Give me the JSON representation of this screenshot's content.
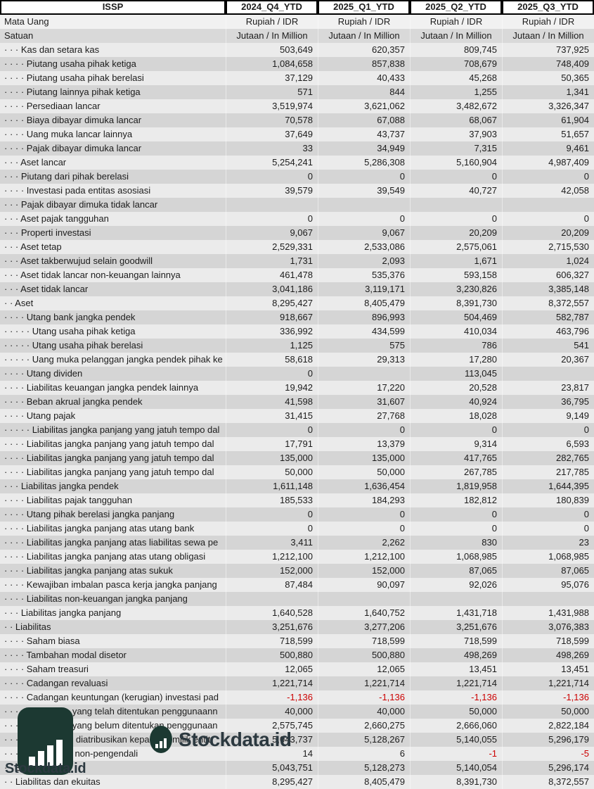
{
  "header": {
    "ticker": "ISSP",
    "periods": [
      "2024_Q4_YTD",
      "2025_Q1_YTD",
      "2025_Q2_YTD",
      "2025_Q3_YTD"
    ],
    "currency_label": "Mata Uang",
    "currency_values": [
      "Rupiah / IDR",
      "Rupiah / IDR",
      "Rupiah / IDR",
      "Rupiah / IDR"
    ],
    "unit_label": "Satuan",
    "unit_values": [
      "Jutaan / In Million",
      "Jutaan / In Million",
      "Jutaan / In Million",
      "Jutaan / In Million"
    ]
  },
  "colors": {
    "negative_value": "#cc0000",
    "row_light": "#ebebeb",
    "row_dark": "#d5d5d5",
    "logo_background": "#1c3932",
    "brand_text": "#2c3940"
  },
  "watermark": {
    "brand": "Stockdata.id"
  },
  "rows": [
    {
      "label": "· · · Kas dan setara kas",
      "values": [
        "503,649",
        "620,357",
        "809,745",
        "737,925"
      ]
    },
    {
      "label": "· · · · Piutang usaha pihak ketiga",
      "values": [
        "1,084,658",
        "857,838",
        "708,679",
        "748,409"
      ]
    },
    {
      "label": "· · · · Piutang usaha pihak berelasi",
      "values": [
        "37,129",
        "40,433",
        "45,268",
        "50,365"
      ]
    },
    {
      "label": "· · · · Piutang lainnya pihak ketiga",
      "values": [
        "571",
        "844",
        "1,255",
        "1,341"
      ]
    },
    {
      "label": "· · · · Persediaan lancar",
      "values": [
        "3,519,974",
        "3,621,062",
        "3,482,672",
        "3,326,347"
      ]
    },
    {
      "label": "· · · · Biaya dibayar dimuka lancar",
      "values": [
        "70,578",
        "67,088",
        "68,067",
        "61,904"
      ]
    },
    {
      "label": "· · · · Uang muka lancar lainnya",
      "values": [
        "37,649",
        "43,737",
        "37,903",
        "51,657"
      ]
    },
    {
      "label": "· · · · Pajak dibayar dimuka lancar",
      "values": [
        "33",
        "34,949",
        "7,315",
        "9,461"
      ]
    },
    {
      "label": "· · · Aset lancar",
      "values": [
        "5,254,241",
        "5,286,308",
        "5,160,904",
        "4,987,409"
      ]
    },
    {
      "label": "· · · Piutang dari pihak berelasi",
      "values": [
        "0",
        "0",
        "0",
        "0"
      ]
    },
    {
      "label": "· · · · Investasi pada entitas asosiasi",
      "values": [
        "39,579",
        "39,549",
        "40,727",
        "42,058"
      ]
    },
    {
      "label": "· · · Pajak dibayar dimuka tidak lancar",
      "values": [
        "",
        "",
        "",
        ""
      ]
    },
    {
      "label": "· · · Aset pajak tangguhan",
      "values": [
        "0",
        "0",
        "0",
        "0"
      ]
    },
    {
      "label": "· · · Properti investasi",
      "values": [
        "9,067",
        "9,067",
        "20,209",
        "20,209"
      ]
    },
    {
      "label": "· · · Aset tetap",
      "values": [
        "2,529,331",
        "2,533,086",
        "2,575,061",
        "2,715,530"
      ]
    },
    {
      "label": "· · · Aset takberwujud selain goodwill",
      "values": [
        "1,731",
        "2,093",
        "1,671",
        "1,024"
      ]
    },
    {
      "label": "· · · Aset tidak lancar non-keuangan lainnya",
      "values": [
        "461,478",
        "535,376",
        "593,158",
        "606,327"
      ]
    },
    {
      "label": "· · · Aset tidak lancar",
      "values": [
        "3,041,186",
        "3,119,171",
        "3,230,826",
        "3,385,148"
      ]
    },
    {
      "label": "· · Aset",
      "values": [
        "8,295,427",
        "8,405,479",
        "8,391,730",
        "8,372,557"
      ]
    },
    {
      "label": "· · · · Utang bank jangka pendek",
      "values": [
        "918,667",
        "896,993",
        "504,469",
        "582,787"
      ]
    },
    {
      "label": "· · · · · Utang usaha pihak ketiga",
      "values": [
        "336,992",
        "434,599",
        "410,034",
        "463,796"
      ]
    },
    {
      "label": "· · · · · Utang usaha pihak berelasi",
      "values": [
        "1,125",
        "575",
        "786",
        "541"
      ]
    },
    {
      "label": "· · · · · Uang muka pelanggan jangka pendek pihak ke",
      "values": [
        "58,618",
        "29,313",
        "17,280",
        "20,367"
      ]
    },
    {
      "label": "· · · · Utang dividen",
      "values": [
        "0",
        "",
        "113,045",
        ""
      ]
    },
    {
      "label": "· · · · Liabilitas keuangan jangka pendek lainnya",
      "values": [
        "19,942",
        "17,220",
        "20,528",
        "23,817"
      ]
    },
    {
      "label": "· · · · Beban akrual jangka pendek",
      "values": [
        "41,598",
        "31,607",
        "40,924",
        "36,795"
      ]
    },
    {
      "label": "· · · · Utang pajak",
      "values": [
        "31,415",
        "27,768",
        "18,028",
        "9,149"
      ]
    },
    {
      "label": "· · · · · Liabilitas jangka panjang yang jatuh tempo dal",
      "values": [
        "0",
        "0",
        "0",
        "0"
      ]
    },
    {
      "label": "· · · · Liabilitas jangka panjang yang jatuh tempo dal",
      "values": [
        "17,791",
        "13,379",
        "9,314",
        "6,593"
      ]
    },
    {
      "label": "· · · · Liabilitas jangka panjang yang jatuh tempo dal",
      "values": [
        "135,000",
        "135,000",
        "417,765",
        "282,765"
      ]
    },
    {
      "label": "· · · · Liabilitas jangka panjang yang jatuh tempo dal",
      "values": [
        "50,000",
        "50,000",
        "267,785",
        "217,785"
      ]
    },
    {
      "label": "· · · Liabilitas jangka pendek",
      "values": [
        "1,611,148",
        "1,636,454",
        "1,819,958",
        "1,644,395"
      ]
    },
    {
      "label": "· · · · Liabilitas pajak tangguhan",
      "values": [
        "185,533",
        "184,293",
        "182,812",
        "180,839"
      ]
    },
    {
      "label": "· · · · Utang pihak berelasi jangka panjang",
      "values": [
        "0",
        "0",
        "0",
        "0"
      ]
    },
    {
      "label": "· · · · Liabilitas jangka panjang atas utang bank",
      "values": [
        "0",
        "0",
        "0",
        "0"
      ]
    },
    {
      "label": "· · · · Liabilitas jangka panjang atas liabilitas sewa pe",
      "values": [
        "3,411",
        "2,262",
        "830",
        "23"
      ]
    },
    {
      "label": "· · · · Liabilitas jangka panjang atas utang obligasi",
      "values": [
        "1,212,100",
        "1,212,100",
        "1,068,985",
        "1,068,985"
      ]
    },
    {
      "label": "· · · · Liabilitas jangka panjang atas sukuk",
      "values": [
        "152,000",
        "152,000",
        "87,065",
        "87,065"
      ]
    },
    {
      "label": "· · · · Kewajiban imbalan pasca kerja jangka panjang",
      "values": [
        "87,484",
        "90,097",
        "92,026",
        "95,076"
      ]
    },
    {
      "label": "· · · · Liabilitas non-keuangan jangka panjang",
      "values": [
        "",
        "",
        "",
        ""
      ]
    },
    {
      "label": "· · · Liabilitas jangka panjang",
      "values": [
        "1,640,528",
        "1,640,752",
        "1,431,718",
        "1,431,988"
      ]
    },
    {
      "label": "· · Liabilitas",
      "values": [
        "3,251,676",
        "3,277,206",
        "3,251,676",
        "3,076,383"
      ]
    },
    {
      "label": "· · · · Saham biasa",
      "values": [
        "718,599",
        "718,599",
        "718,599",
        "718,599"
      ]
    },
    {
      "label": "· · · · Tambahan modal disetor",
      "values": [
        "500,880",
        "500,880",
        "498,269",
        "498,269"
      ]
    },
    {
      "label": "· · · · Saham treasuri",
      "values": [
        "12,065",
        "12,065",
        "13,451",
        "13,451"
      ]
    },
    {
      "label": "· · · · Cadangan revaluasi",
      "values": [
        "1,221,714",
        "1,221,714",
        "1,221,714",
        "1,221,714"
      ]
    },
    {
      "label": "· · · · Cadangan keuntungan (kerugian) investasi pad",
      "values": [
        "-1,136",
        "-1,136",
        "-1,136",
        "-1,136"
      ]
    },
    {
      "label": "· · · · Saldo laba yang telah ditentukan penggunaann",
      "values": [
        "40,000",
        "40,000",
        "50,000",
        "50,000"
      ]
    },
    {
      "label": "· · · · Saldo laba yang belum ditentukan penggunaan",
      "values": [
        "2,575,745",
        "2,660,275",
        "2,666,060",
        "2,822,184"
      ]
    },
    {
      "label": "· · · Ekuitas yang diatribusikan kepada pemilik entit",
      "values": [
        "5,043,737",
        "5,128,267",
        "5,140,055",
        "5,296,179"
      ]
    },
    {
      "label": "· · · Kepentingan non-pengendali",
      "values": [
        "14",
        "6",
        "-1",
        "-5"
      ]
    },
    {
      "label": "· · Ekuitas",
      "values": [
        "5,043,751",
        "5,128,273",
        "5,140,054",
        "5,296,174"
      ]
    },
    {
      "label": "· · Liabilitas dan ekuitas",
      "values": [
        "8,295,427",
        "8,405,479",
        "8,391,730",
        "8,372,557"
      ]
    }
  ]
}
